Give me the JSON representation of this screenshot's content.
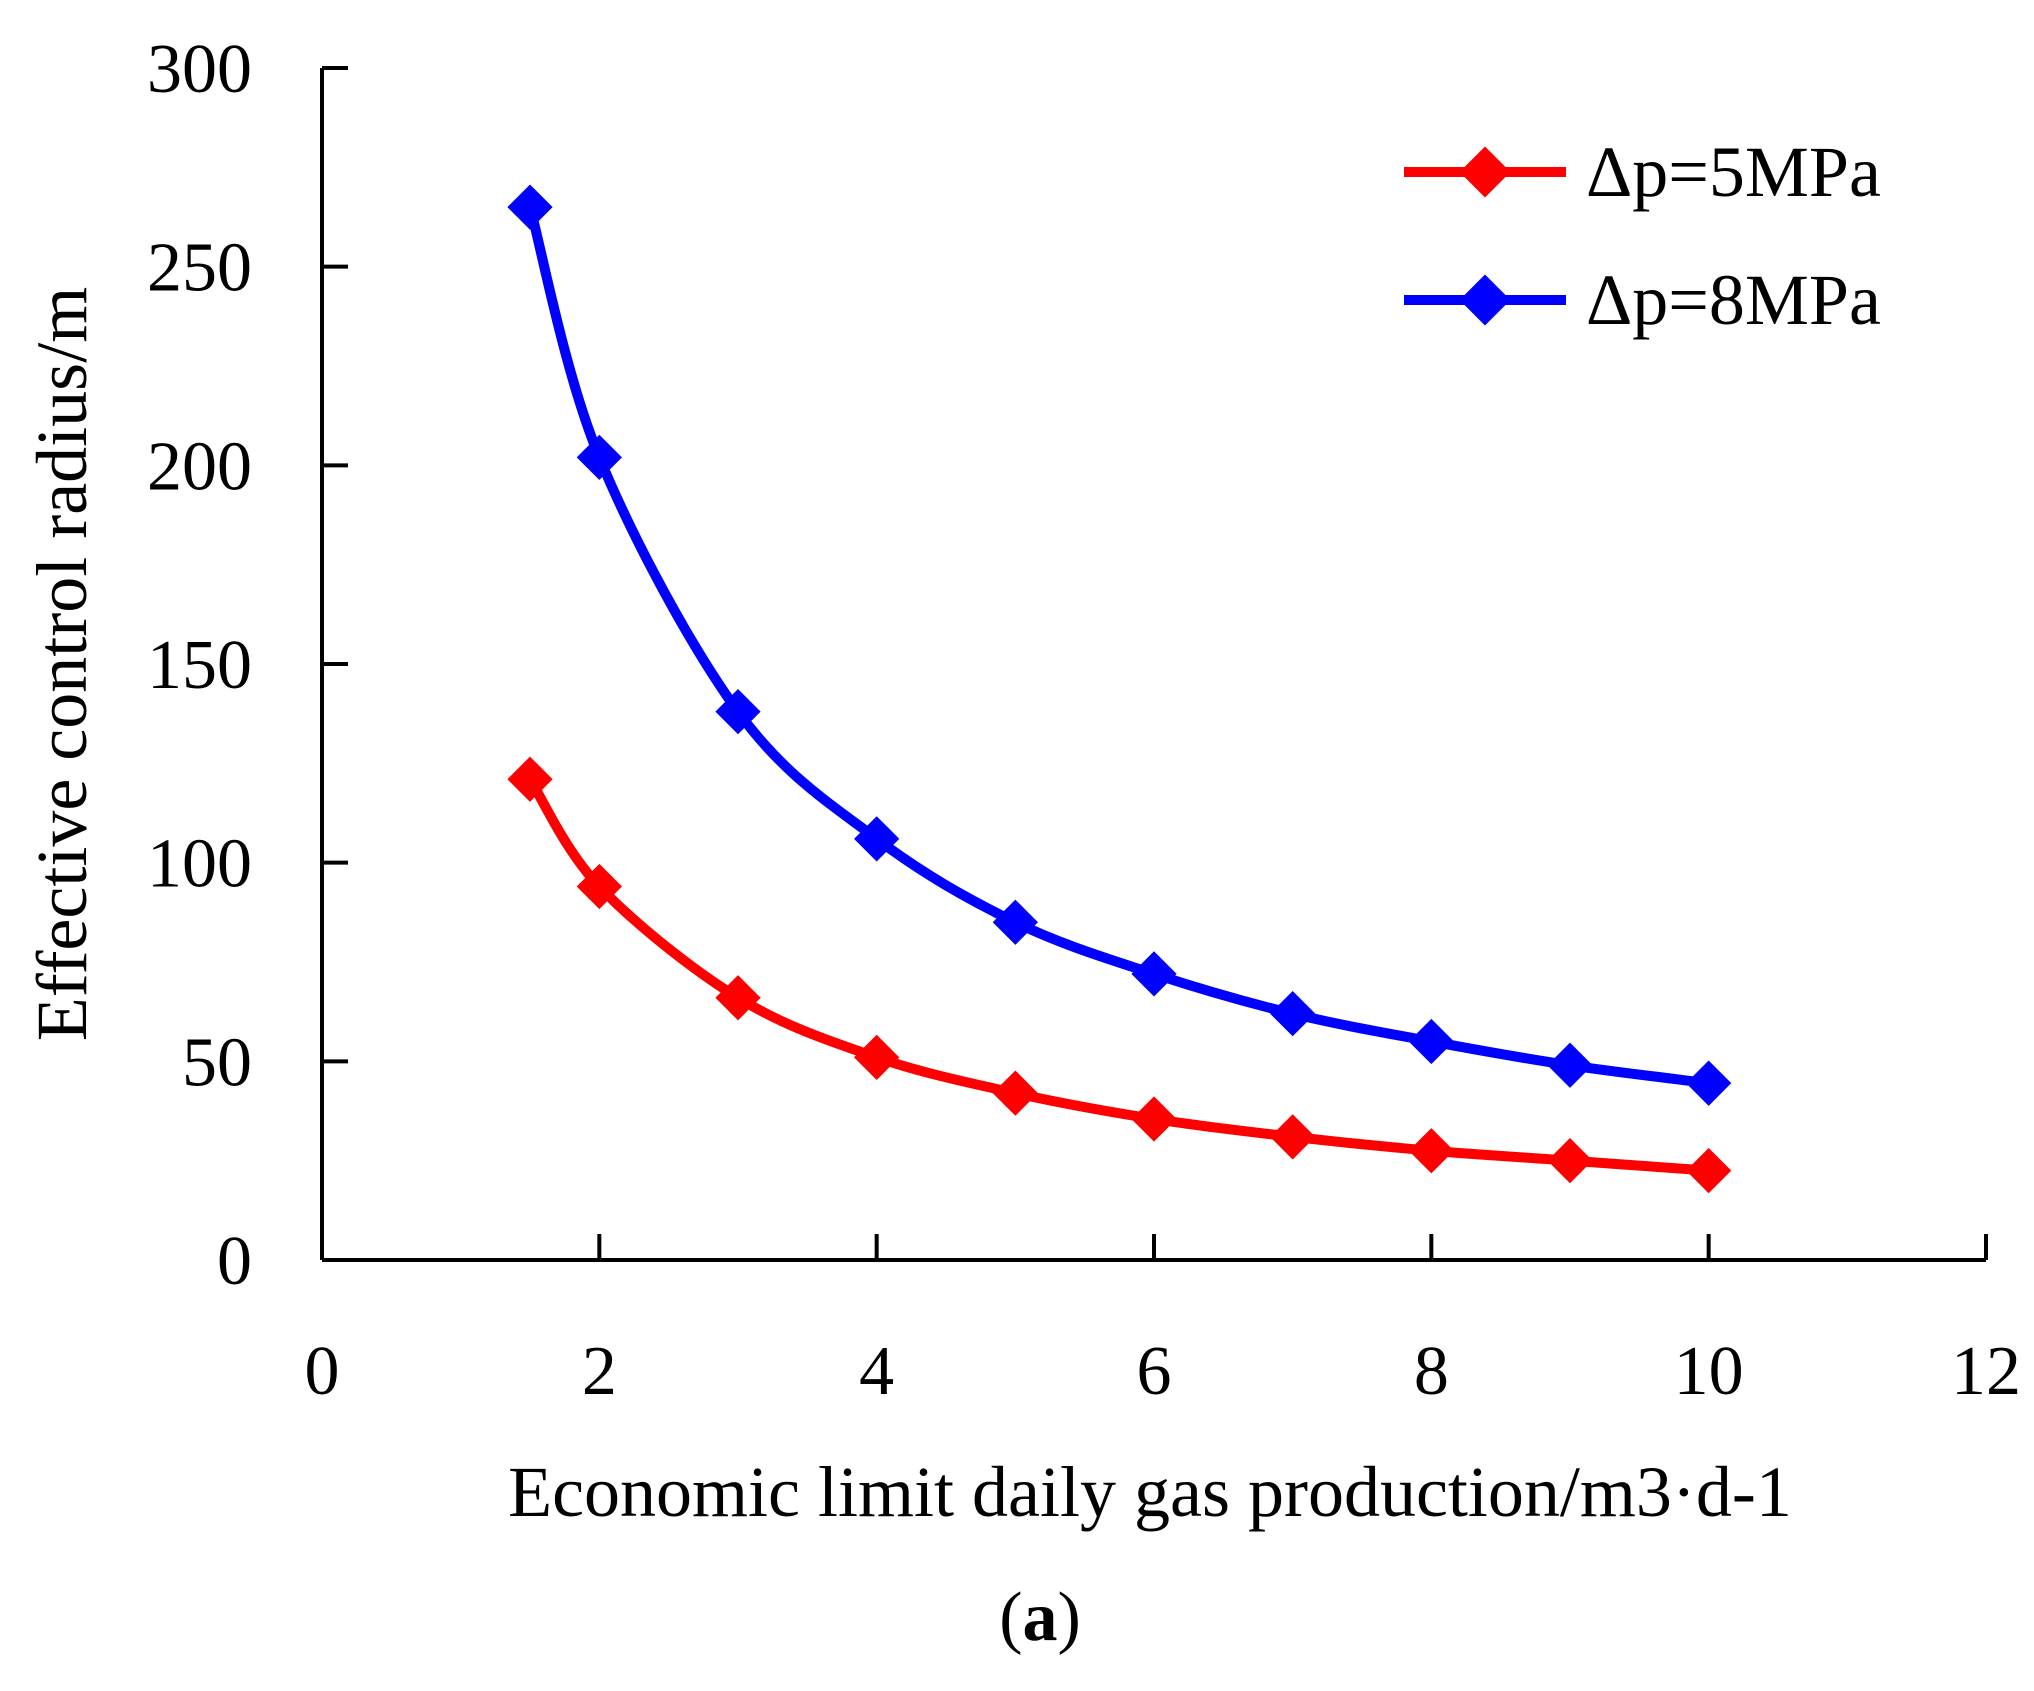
{
  "chart_data": {
    "type": "line",
    "title": "",
    "xlabel": "Economic limit daily gas production/m3·d-1",
    "ylabel": "Effective control radius/m",
    "xlim": [
      0,
      12
    ],
    "ylim": [
      0,
      300
    ],
    "xticks": [
      0,
      2,
      4,
      6,
      8,
      10,
      12
    ],
    "yticks": [
      0,
      50,
      100,
      150,
      200,
      250,
      300
    ],
    "legend_position": "top-right",
    "series": [
      {
        "name": "Δp=5MPa",
        "color": "#ff0000",
        "x": [
          1.5,
          2,
          3,
          4,
          5,
          6,
          7,
          8,
          9,
          10
        ],
        "y": [
          121,
          94,
          66,
          51,
          42,
          35.5,
          31,
          27.5,
          25,
          22.5
        ]
      },
      {
        "name": "Δp=8MPa",
        "color": "#0000ff",
        "x": [
          1.5,
          2,
          3,
          4,
          5,
          6,
          7,
          8,
          9,
          10
        ],
        "y": [
          265,
          202,
          138,
          106,
          85,
          72,
          62,
          55,
          49,
          44.5
        ]
      }
    ]
  },
  "caption": {
    "open": "(",
    "letter": "a",
    "close": ")"
  }
}
